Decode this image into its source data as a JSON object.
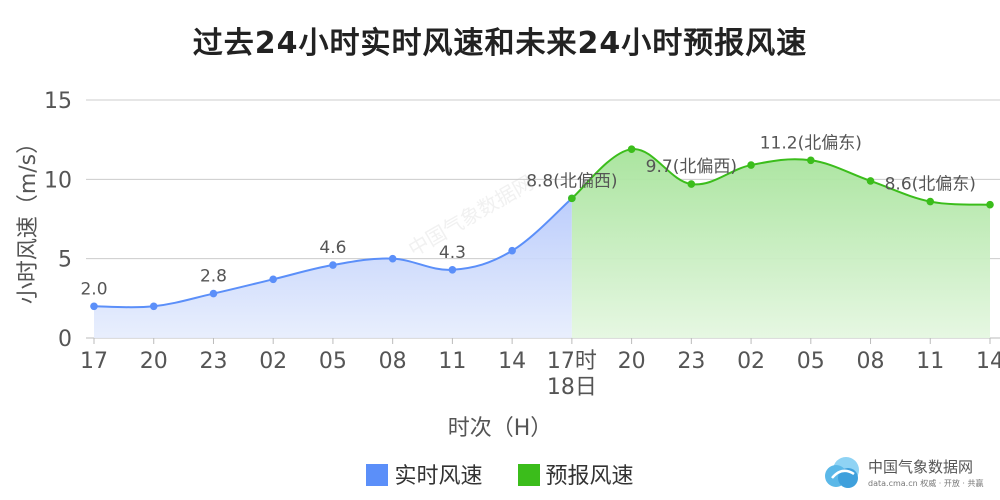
{
  "chart_data": {
    "type": "area",
    "title": "过去24小时实时风速和未来24小时预报风速",
    "xlabel": "时次（H）",
    "ylabel": "小时风速（m/s）",
    "ylim": [
      0,
      15
    ],
    "yticks": [
      "0",
      "5",
      "10",
      "15"
    ],
    "grid": true,
    "legend_position": "bottom",
    "categories": [
      "17",
      "20",
      "23",
      "02",
      "05",
      "08",
      "11",
      "14",
      "17时",
      "20",
      "23",
      "02",
      "05",
      "08",
      "11",
      "14"
    ],
    "date_marker": {
      "category": "17时",
      "label": "18日"
    },
    "series": [
      {
        "name": "实时风速",
        "color": "#5b8ff9",
        "values": [
          2.0,
          2.0,
          2.8,
          3.7,
          4.6,
          5.0,
          4.3,
          5.5,
          8.8,
          null,
          null,
          null,
          null,
          null,
          null,
          null
        ],
        "labels": [
          "2.0",
          null,
          "2.8",
          null,
          "4.6",
          null,
          "4.3",
          null,
          null,
          null,
          null,
          null,
          null,
          null,
          null,
          null
        ]
      },
      {
        "name": "预报风速",
        "color": "#3bbd1b",
        "values": [
          null,
          null,
          null,
          null,
          null,
          null,
          null,
          null,
          8.8,
          11.9,
          9.7,
          10.9,
          11.2,
          9.9,
          8.6,
          8.4
        ],
        "labels": [
          null,
          null,
          null,
          null,
          null,
          null,
          null,
          null,
          "8.8(北偏西)",
          null,
          "9.7(北偏西)",
          null,
          "11.2(北偏东)",
          null,
          "8.6(北偏东)",
          null
        ]
      }
    ]
  },
  "logo": {
    "name": "中国气象数据网",
    "sub": "data.cma.cn 权威 · 开放 · 共赢"
  },
  "watermark": "中国气象数据网"
}
